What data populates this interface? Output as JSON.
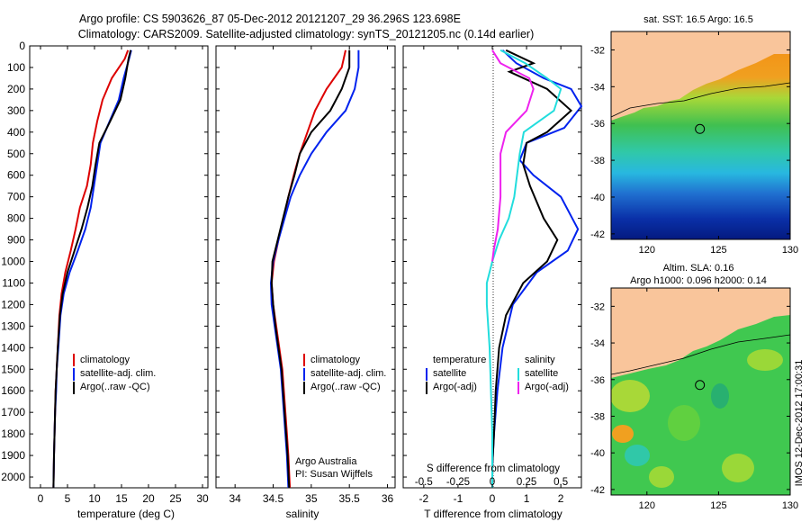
{
  "header": {
    "line1": "Argo profile: CS 5903626_87 05-Dec-2012 20121207_29 36.296S 123.698E",
    "line2": "Climatology: CARS2009. Satellite-adjusted climatology: synTS_20121205.nc (0.14d earlier)"
  },
  "depth_ticks": [
    "0",
    "100",
    "200",
    "300",
    "400",
    "500",
    "600",
    "700",
    "800",
    "900",
    "1000",
    "1100",
    "1200",
    "1300",
    "1400",
    "1500",
    "1600",
    "1700",
    "1800",
    "1900",
    "2000"
  ],
  "colors": {
    "climatology": "#dd0000",
    "satellite": "#0022ee",
    "argo": "#000000",
    "satellite_salinity": "#22dddd",
    "argo_salinity_adj": "#ee22ee",
    "land": "#f9c59b"
  },
  "chart_data": [
    {
      "type": "line",
      "id": "temperature",
      "xlabel": "temperature (deg C)",
      "xlim": [
        -2,
        31
      ],
      "ylim": [
        0,
        2050
      ],
      "y_reversed": true,
      "xticks": [
        "0",
        "5",
        "10",
        "15",
        "20",
        "25",
        "30"
      ],
      "series": [
        {
          "name": "climatology",
          "color": "#dd0000",
          "x": [
            16.2,
            15.6,
            13.2,
            11.5,
            10.5,
            9.7,
            9.3,
            8.6,
            7.3,
            6.5,
            5.6,
            4.6,
            3.9,
            3.5,
            3.2,
            3.0,
            2.8,
            2.7,
            2.6,
            2.5,
            2.4
          ],
          "y": [
            20,
            60,
            150,
            250,
            350,
            450,
            550,
            650,
            750,
            850,
            950,
            1050,
            1150,
            1250,
            1400,
            1500,
            1600,
            1700,
            1800,
            1900,
            2050
          ]
        },
        {
          "name": "satellite-adj. clim.",
          "color": "#0022ee",
          "x": [
            16.8,
            16.4,
            15.4,
            14.5,
            12.8,
            11.1,
            10.5,
            9.9,
            9.3,
            8.3,
            6.9,
            5.4,
            4.3,
            3.7,
            3.3,
            3.0,
            2.9,
            2.7,
            2.6,
            2.5,
            2.4
          ],
          "y": [
            20,
            60,
            150,
            250,
            350,
            450,
            550,
            650,
            750,
            850,
            950,
            1050,
            1150,
            1250,
            1400,
            1500,
            1600,
            1700,
            1800,
            1900,
            2050
          ]
        },
        {
          "name": "Argo(..raw -QC)",
          "color": "#000000",
          "x": [
            16.7,
            16.3,
            15.7,
            14.8,
            12.9,
            10.9,
            10.2,
            9.6,
            8.7,
            7.6,
            6.3,
            5.0,
            4.1,
            3.6,
            3.2,
            3.0,
            2.8,
            2.7,
            2.6,
            2.5,
            2.4
          ],
          "y": [
            20,
            60,
            150,
            250,
            350,
            450,
            550,
            650,
            750,
            850,
            950,
            1050,
            1150,
            1250,
            1400,
            1500,
            1600,
            1700,
            1800,
            1900,
            2050
          ]
        }
      ],
      "legend": [
        "climatology",
        "satellite-adj. clim.",
        "Argo(..raw -QC)"
      ]
    },
    {
      "type": "line",
      "id": "salinity",
      "xlabel": "salinity",
      "xlim": [
        33.75,
        36.1
      ],
      "ylim": [
        0,
        2050
      ],
      "y_reversed": true,
      "xticks": [
        "34",
        "34.5",
        "35",
        "35.5",
        "36"
      ],
      "series": [
        {
          "name": "climatology",
          "color": "#dd0000",
          "x": [
            35.45,
            35.4,
            35.2,
            35.05,
            34.95,
            34.85,
            34.77,
            34.7,
            34.64,
            34.57,
            34.51,
            34.48,
            34.5,
            34.54,
            34.58,
            34.62,
            34.64,
            34.66,
            34.68,
            34.7,
            34.72
          ],
          "y": [
            20,
            100,
            200,
            300,
            400,
            500,
            600,
            700,
            800,
            900,
            1000,
            1100,
            1200,
            1300,
            1400,
            1500,
            1600,
            1700,
            1800,
            1900,
            2050
          ]
        },
        {
          "name": "satellite-adj. clim.",
          "color": "#0022ee",
          "x": [
            35.62,
            35.62,
            35.57,
            35.45,
            35.2,
            35.0,
            34.85,
            34.73,
            34.65,
            34.57,
            34.5,
            34.47,
            34.48,
            34.52,
            34.56,
            34.6,
            34.62,
            34.64,
            34.66,
            34.68,
            34.7
          ],
          "y": [
            20,
            100,
            200,
            300,
            400,
            500,
            600,
            700,
            800,
            900,
            1000,
            1100,
            1200,
            1300,
            1400,
            1500,
            1600,
            1700,
            1800,
            1900,
            2050
          ]
        },
        {
          "name": "Argo(..raw -QC)",
          "color": "#000000",
          "x": [
            35.5,
            35.5,
            35.4,
            35.25,
            35.0,
            34.85,
            34.78,
            34.7,
            34.63,
            34.56,
            34.49,
            34.48,
            34.5,
            34.53,
            34.57,
            34.61,
            34.63,
            34.65,
            34.67,
            34.69,
            34.71
          ],
          "y": [
            20,
            100,
            200,
            300,
            400,
            500,
            600,
            700,
            800,
            900,
            1000,
            1100,
            1200,
            1300,
            1400,
            1500,
            1600,
            1700,
            1800,
            1900,
            2050
          ]
        }
      ],
      "legend": [
        "climatology",
        "satellite-adj. clim.",
        "Argo(..raw -QC)"
      ],
      "annotation": [
        "Argo Australia",
        "PI: Susan Wijffels"
      ]
    },
    {
      "type": "line",
      "id": "difference",
      "xlabel": "T difference from climatology",
      "x2label": "S difference from climatology",
      "xlim": [
        -2.6,
        2.6
      ],
      "ylim": [
        0,
        2050
      ],
      "y_reversed": true,
      "xticks": [
        "-2",
        "-1",
        "0",
        "1",
        "2"
      ],
      "x2ticks": [
        "-0.5",
        "-0.25",
        "0",
        "0.25",
        "0.5"
      ],
      "x2values": [
        -0.5,
        -0.25,
        0,
        0.25,
        0.5
      ],
      "series": [
        {
          "name": "temperature satellite",
          "color": "#0022ee",
          "x": [
            0.3,
            0.7,
            1.5,
            2.3,
            2.6,
            2.1,
            1.0,
            0.8,
            1.2,
            2.0,
            2.5,
            2.2,
            1.3,
            0.6,
            0.3,
            0.15,
            0.05,
            0,
            0
          ],
          "y": [
            20,
            80,
            150,
            200,
            280,
            380,
            450,
            530,
            600,
            700,
            850,
            950,
            1050,
            1200,
            1400,
            1600,
            1800,
            1950,
            2050
          ]
        },
        {
          "name": "temperature Argo(-adj)",
          "color": "#000000",
          "x": [
            0.4,
            1.2,
            0.5,
            1.6,
            2.3,
            1.6,
            1.0,
            0.9,
            1.1,
            1.5,
            1.9,
            1.6,
            0.9,
            0.4,
            0.2,
            0.1,
            0.05,
            0,
            0
          ],
          "y": [
            20,
            80,
            120,
            200,
            300,
            400,
            450,
            550,
            650,
            800,
            900,
            1000,
            1100,
            1250,
            1400,
            1600,
            1800,
            1950,
            2050
          ]
        },
        {
          "name": "salinity satellite",
          "color": "#22dddd",
          "x": [
            0.06,
            0.24,
            0.4,
            0.5,
            0.45,
            0.23,
            0.2,
            0.16,
            0.12,
            0.05,
            0.0,
            -0.04,
            -0.04,
            -0.02,
            -0.01,
            0,
            0
          ],
          "y": [
            20,
            80,
            150,
            200,
            300,
            400,
            500,
            700,
            800,
            900,
            1000,
            1100,
            1200,
            1400,
            1600,
            1800,
            2050
          ]
        },
        {
          "name": "salinity Argo(-adj)",
          "color": "#ee22ee",
          "x": [
            0.0,
            0.06,
            0.27,
            0.3,
            0.25,
            0.1,
            0.06,
            0.06,
            0.04,
            0.01,
            0.0
          ],
          "y": [
            20,
            80,
            150,
            200,
            300,
            400,
            500,
            700,
            850,
            950,
            1000
          ]
        }
      ],
      "legend_headers": [
        "temperature",
        "salinity"
      ],
      "legend": [
        "satellite",
        "Argo(-adj)",
        "satellite",
        "Argo(-adj)"
      ]
    }
  ],
  "maps": {
    "xticks": [
      "120",
      "125",
      "130"
    ],
    "yticks": [
      "-32",
      "-34",
      "-36",
      "-38",
      "-40",
      "-42"
    ],
    "sst_title": "sat. SST: 16.5  Argo: 16.5",
    "sla_title_1": "Altim. SLA: 0.16",
    "sla_title_2": "Argo h1000: 0.096 h2000: 0.14",
    "float_lon": 123.698,
    "float_lat": -36.296,
    "side_label": "IMOS 12-Dec-2012 17:00:31"
  }
}
